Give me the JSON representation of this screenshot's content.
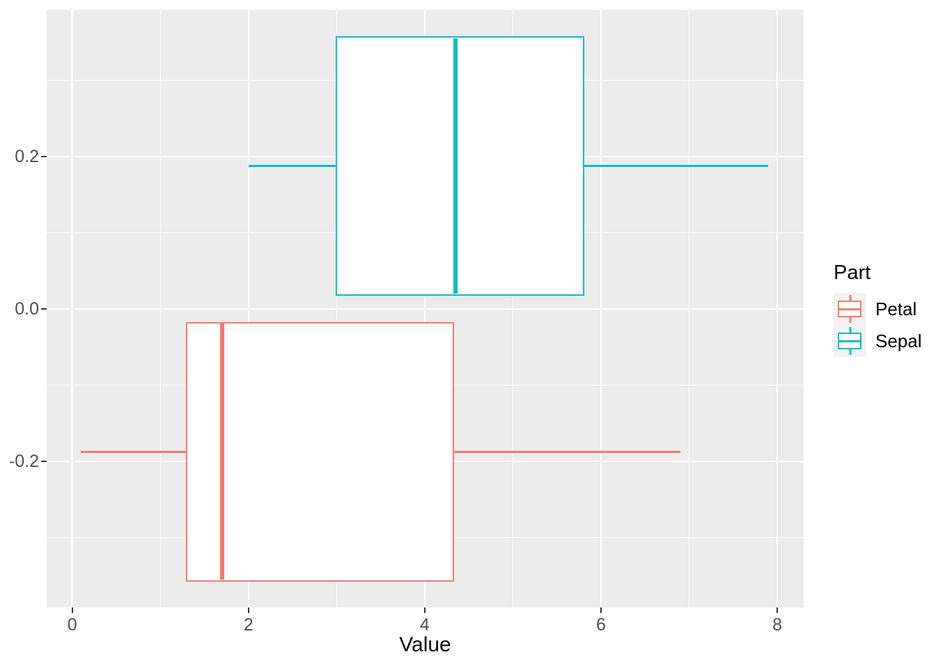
{
  "chart_data": {
    "type": "boxplot",
    "orientation": "horizontal",
    "xlabel": "Value",
    "legend_title": "Part",
    "legend_position": "right",
    "grid": true,
    "x_axis": {
      "range": [
        -0.29,
        8.3
      ],
      "major_ticks": [
        0,
        2,
        4,
        6,
        8
      ],
      "tick_labels": [
        "0",
        "2",
        "4",
        "6",
        "8"
      ],
      "minor_ticks": [
        1,
        3,
        5,
        7
      ]
    },
    "y_axis": {
      "range": [
        -0.3918,
        0.3927
      ],
      "major_ticks": [
        -0.2,
        0.0,
        0.2
      ],
      "tick_labels": [
        "-0.2",
        "0.0",
        "0.2"
      ],
      "minor_ticks": [
        -0.3,
        -0.1,
        0.1,
        0.3
      ]
    },
    "series": [
      {
        "name": "Petal",
        "color": "#F8766D",
        "fill": "#FFFFFF",
        "center": -0.1875,
        "box_half_height": 0.169,
        "min": 0.1,
        "q1": 1.3,
        "median": 1.7,
        "q3": 4.325,
        "max": 6.9
      },
      {
        "name": "Sepal",
        "color": "#00BFC4",
        "fill": "#FFFFFF",
        "center": 0.1875,
        "box_half_height": 0.169,
        "min": 2.0,
        "q1": 3.0,
        "median": 4.35,
        "q3": 5.8,
        "max": 7.9
      }
    ],
    "colors": {
      "panel_background": "#EBEBEB",
      "gridline": "#FFFFFF",
      "tick_mark": "#333333",
      "tick_label": "#4D4D4D",
      "axis_title": "#000000",
      "legend_key_background": "#F2F2F2"
    }
  }
}
